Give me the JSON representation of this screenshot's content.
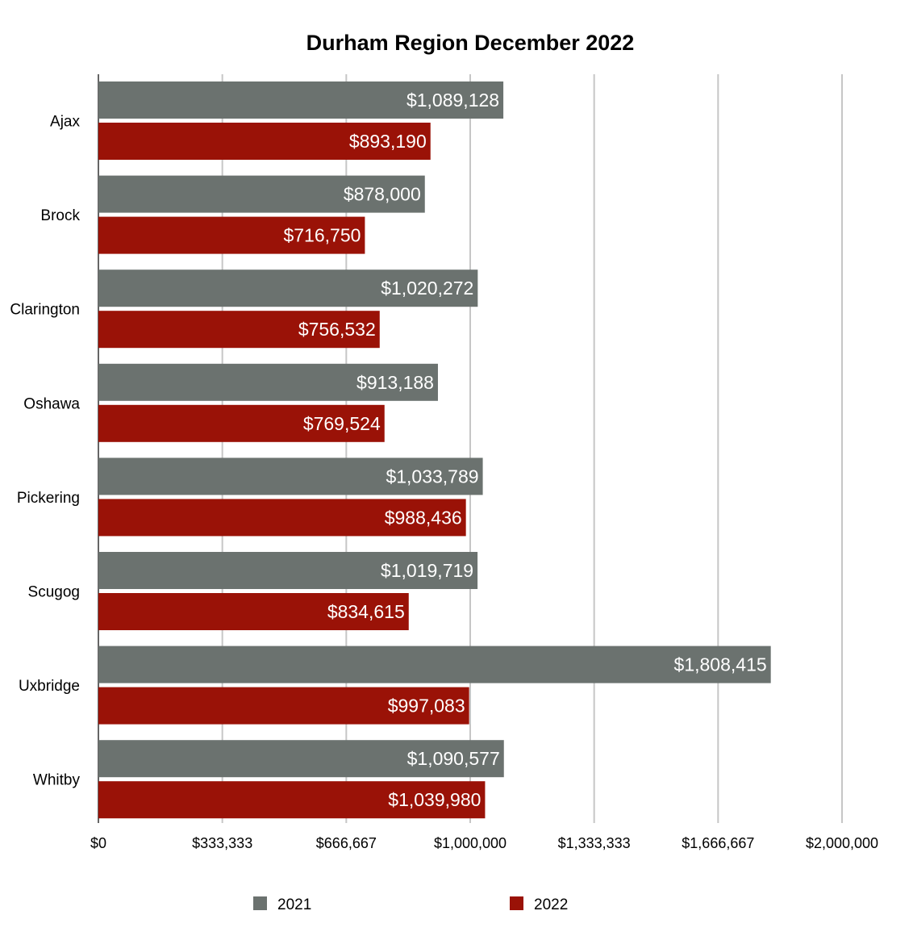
{
  "chart_data": {
    "type": "bar",
    "orientation": "horizontal",
    "title": "Durham Region December 2022",
    "xlabel": "",
    "ylabel": "",
    "categories": [
      "Ajax",
      "Brock",
      "Clarington",
      "Oshawa",
      "Pickering",
      "Scugog",
      "Uxbridge",
      "Whitby"
    ],
    "series": [
      {
        "name": "2021",
        "color": "#6b726f",
        "values": [
          1089128,
          878000,
          1020272,
          913188,
          1033789,
          1019719,
          1808415,
          1090577
        ],
        "labels": [
          "$1,089,128",
          "$878,000",
          "$1,020,272",
          "$913,188",
          "$1,033,789",
          "$1,019,719",
          "$1,808,415",
          "$1,090,577"
        ]
      },
      {
        "name": "2022",
        "color": "#9a1207",
        "values": [
          893190,
          716750,
          756532,
          769524,
          988436,
          834615,
          997083,
          1039980
        ],
        "labels": [
          "$893,190",
          "$716,750",
          "$756,532",
          "$769,524",
          "$988,436",
          "$834,615",
          "$997,083",
          "$1,039,980"
        ]
      }
    ],
    "xlim": [
      0,
      2000000
    ],
    "ticks": [
      0,
      333333,
      666667,
      1000000,
      1333333,
      1666667,
      2000000
    ],
    "tick_labels": [
      "$0",
      "$333,333",
      "$666,667",
      "$1,000,000",
      "$1,333,333",
      "$1,666,667",
      "$2,000,000"
    ],
    "grid": true,
    "legend": "bottom"
  }
}
